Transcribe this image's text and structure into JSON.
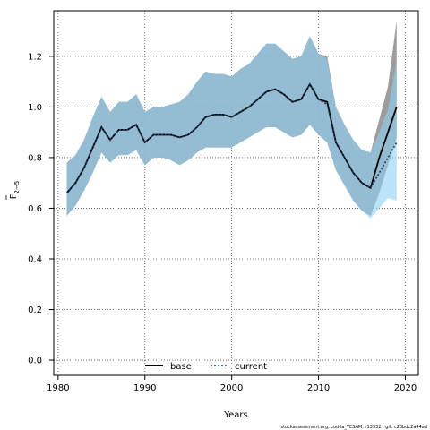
{
  "chart_data": {
    "type": "line",
    "title": "",
    "xlabel": "Years",
    "ylabel_main": "F",
    "ylabel_sub": "2−5",
    "xlim": [
      1979.5,
      2021.5
    ],
    "ylim": [
      -0.06,
      1.38
    ],
    "x_ticks": [
      1980,
      1990,
      2000,
      2010,
      2020
    ],
    "y_ticks": [
      0.0,
      0.2,
      0.4,
      0.6,
      0.8,
      1.0,
      1.2
    ],
    "y_tick_labels": [
      "0.0",
      "0.2",
      "0.4",
      "0.6",
      "0.8",
      "1.0",
      "1.2"
    ],
    "grid": true,
    "legend_placement": "bottom-center",
    "x": [
      1981,
      1982,
      1983,
      1984,
      1985,
      1986,
      1987,
      1988,
      1989,
      1990,
      1991,
      1992,
      1993,
      1994,
      1995,
      1996,
      1997,
      1998,
      1999,
      2000,
      2001,
      2002,
      2003,
      2004,
      2005,
      2006,
      2007,
      2008,
      2009,
      2010,
      2011,
      2012,
      2013,
      2014,
      2015,
      2016,
      2017,
      2018,
      2019
    ],
    "series": [
      {
        "name": "base",
        "style": "solid",
        "color": "#000000",
        "band_color": "#8c8c8c",
        "values": [
          0.66,
          0.7,
          0.76,
          0.84,
          0.92,
          0.87,
          0.91,
          0.91,
          0.93,
          0.86,
          0.89,
          0.89,
          0.89,
          0.88,
          0.89,
          0.92,
          0.96,
          0.97,
          0.97,
          0.96,
          0.98,
          1.0,
          1.03,
          1.06,
          1.07,
          1.05,
          1.02,
          1.03,
          1.09,
          1.03,
          1.02,
          0.86,
          0.8,
          0.74,
          0.7,
          0.68,
          0.8,
          0.9,
          1.0
        ],
        "lower": [
          0.57,
          0.61,
          0.67,
          0.74,
          0.82,
          0.78,
          0.81,
          0.81,
          0.83,
          0.77,
          0.8,
          0.8,
          0.79,
          0.77,
          0.79,
          0.82,
          0.84,
          0.84,
          0.84,
          0.84,
          0.86,
          0.88,
          0.9,
          0.92,
          0.92,
          0.9,
          0.88,
          0.89,
          0.93,
          0.89,
          0.86,
          0.75,
          0.69,
          0.63,
          0.59,
          0.57,
          0.66,
          0.77,
          0.88
        ],
        "upper": [
          0.78,
          0.81,
          0.87,
          0.96,
          1.04,
          0.98,
          1.02,
          1.02,
          1.05,
          0.98,
          1.0,
          1.0,
          1.01,
          1.02,
          1.05,
          1.1,
          1.14,
          1.13,
          1.13,
          1.12,
          1.15,
          1.17,
          1.21,
          1.25,
          1.25,
          1.22,
          1.19,
          1.2,
          1.28,
          1.21,
          1.2,
          1.0,
          0.93,
          0.87,
          0.83,
          0.82,
          0.95,
          1.08,
          1.34
        ]
      },
      {
        "name": "current",
        "style": "dotted",
        "color": "#1f3a5f",
        "band_color": "#8ed0f5",
        "values": [
          0.66,
          0.7,
          0.76,
          0.84,
          0.92,
          0.87,
          0.91,
          0.91,
          0.93,
          0.86,
          0.89,
          0.89,
          0.89,
          0.88,
          0.89,
          0.92,
          0.96,
          0.97,
          0.97,
          0.96,
          0.98,
          1.0,
          1.03,
          1.06,
          1.07,
          1.05,
          1.02,
          1.03,
          1.09,
          1.03,
          1.01,
          0.86,
          0.8,
          0.74,
          0.7,
          0.68,
          0.74,
          0.8,
          0.86
        ],
        "lower": [
          0.57,
          0.61,
          0.67,
          0.74,
          0.82,
          0.78,
          0.81,
          0.81,
          0.83,
          0.77,
          0.8,
          0.8,
          0.79,
          0.77,
          0.79,
          0.82,
          0.84,
          0.84,
          0.84,
          0.84,
          0.86,
          0.88,
          0.9,
          0.92,
          0.92,
          0.9,
          0.88,
          0.89,
          0.93,
          0.89,
          0.86,
          0.75,
          0.69,
          0.63,
          0.59,
          0.56,
          0.6,
          0.64,
          0.63
        ],
        "upper": [
          0.78,
          0.81,
          0.87,
          0.96,
          1.04,
          0.98,
          1.02,
          1.02,
          1.05,
          0.98,
          1.0,
          1.0,
          1.01,
          1.02,
          1.05,
          1.1,
          1.14,
          1.13,
          1.13,
          1.12,
          1.15,
          1.17,
          1.21,
          1.25,
          1.25,
          1.22,
          1.19,
          1.2,
          1.28,
          1.21,
          1.19,
          1.0,
          0.93,
          0.87,
          0.83,
          0.82,
          0.9,
          0.99,
          1.18
        ]
      }
    ],
    "footer": "stockassessment.org, cod6a_TCSAM, r13332 , git: c28bdc2a44ad"
  }
}
